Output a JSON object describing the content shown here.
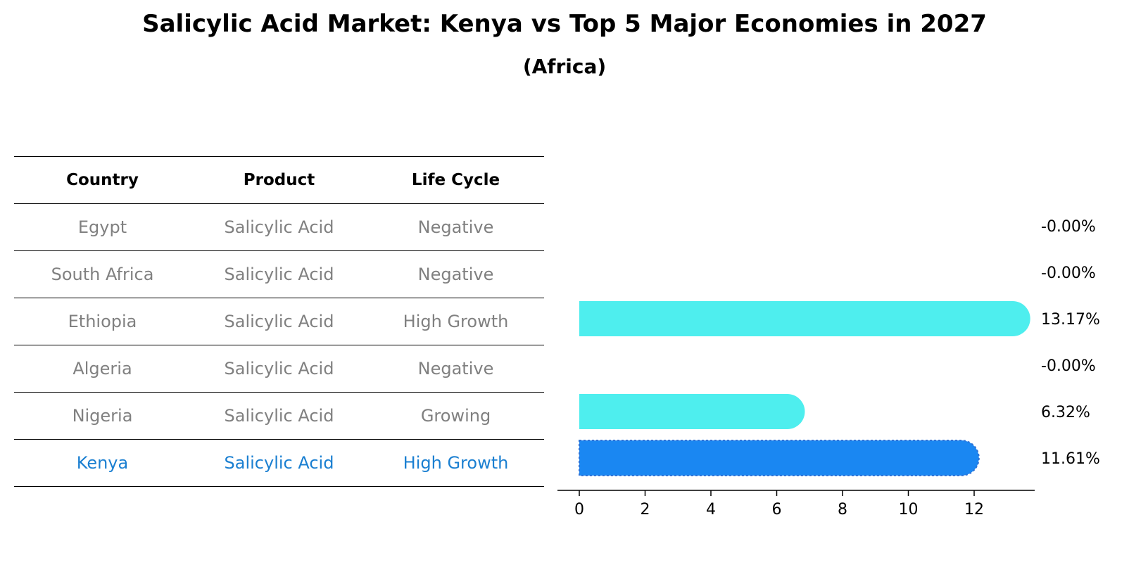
{
  "title": "Salicylic Acid Market: Kenya vs Top 5 Major Economies in 2027",
  "subtitle": "(Africa)",
  "table": {
    "headers": [
      "Country",
      "Product",
      "Life Cycle"
    ],
    "rows": [
      {
        "country": "Egypt",
        "product": "Salicylic Acid",
        "life_cycle": "Negative"
      },
      {
        "country": "South Africa",
        "product": "Salicylic Acid",
        "life_cycle": "Negative"
      },
      {
        "country": "Ethiopia",
        "product": "Salicylic Acid",
        "life_cycle": "High Growth"
      },
      {
        "country": "Algeria",
        "product": "Salicylic Acid",
        "life_cycle": "Negative"
      },
      {
        "country": "Nigeria",
        "product": "Salicylic Acid",
        "life_cycle": "Growing"
      },
      {
        "country": "Kenya",
        "product": "Salicylic Acid",
        "life_cycle": "High Growth"
      }
    ]
  },
  "colors": {
    "bar": "#4eeeee",
    "highlight_bar": "#1a87f2",
    "highlight_text": "#1a7fd1",
    "row_text": "#808080"
  },
  "chart_data": {
    "type": "bar",
    "orientation": "horizontal",
    "categories": [
      "Egypt",
      "South Africa",
      "Ethiopia",
      "Algeria",
      "Nigeria",
      "Kenya"
    ],
    "values": [
      0.0,
      0.0,
      13.17,
      0.0,
      6.32,
      11.61
    ],
    "value_labels": [
      "-0.00%",
      "-0.00%",
      "13.17%",
      "-0.00%",
      "6.32%",
      "11.61%"
    ],
    "highlight": "Kenya",
    "xticks": [
      0,
      2,
      4,
      6,
      8,
      10,
      12
    ],
    "xlim": [
      -0.7,
      14.0
    ],
    "grid": false
  }
}
